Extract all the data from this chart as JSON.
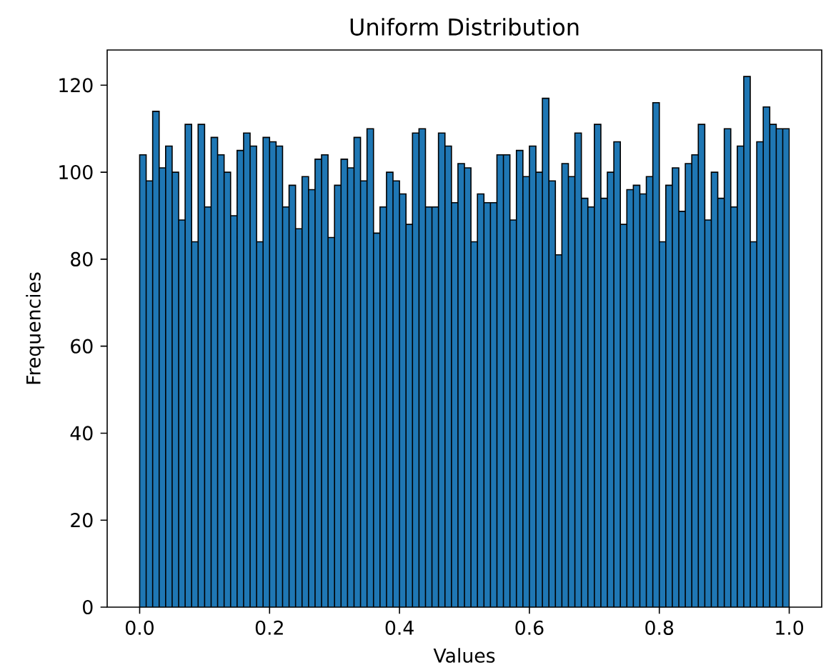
{
  "chart_data": {
    "type": "histogram",
    "title": "Uniform Distribution",
    "xlabel": "Values",
    "ylabel": "Frequencies",
    "bins": [
      0,
      0.01,
      0.02,
      0.03,
      0.04,
      0.05,
      0.06,
      0.07,
      0.08,
      0.09,
      0.1,
      0.11,
      0.12,
      0.13,
      0.14,
      0.15,
      0.16,
      0.17,
      0.18,
      0.19,
      0.2,
      0.21,
      0.22,
      0.23,
      0.24,
      0.25,
      0.26,
      0.27,
      0.28,
      0.29,
      0.3,
      0.31,
      0.32,
      0.33,
      0.34,
      0.35,
      0.36,
      0.37,
      0.38,
      0.39,
      0.4,
      0.41,
      0.42,
      0.43,
      0.44,
      0.45,
      0.46,
      0.47,
      0.48,
      0.49,
      0.5,
      0.51,
      0.52,
      0.53,
      0.54,
      0.55,
      0.56,
      0.57,
      0.58,
      0.59,
      0.6,
      0.61,
      0.62,
      0.63,
      0.64,
      0.65,
      0.66,
      0.67,
      0.68,
      0.69,
      0.7,
      0.71,
      0.72,
      0.73,
      0.74,
      0.75,
      0.76,
      0.77,
      0.78,
      0.79,
      0.8,
      0.81,
      0.82,
      0.83,
      0.84,
      0.85,
      0.86,
      0.87,
      0.88,
      0.89,
      0.9,
      0.91,
      0.92,
      0.93,
      0.94,
      0.95,
      0.96,
      0.97,
      0.98,
      0.99,
      1
    ],
    "values": [
      104,
      98,
      114,
      101,
      106,
      100,
      89,
      111,
      84,
      111,
      92,
      108,
      104,
      100,
      90,
      105,
      109,
      106,
      84,
      108,
      107,
      106,
      92,
      97,
      87,
      99,
      96,
      103,
      104,
      85,
      97,
      103,
      101,
      108,
      98,
      110,
      86,
      92,
      100,
      98,
      95,
      88,
      109,
      110,
      92,
      92,
      109,
      106,
      93,
      102,
      101,
      84,
      95,
      93,
      93,
      104,
      104,
      89,
      105,
      99,
      106,
      100,
      117,
      98,
      81,
      102,
      99,
      109,
      94,
      92,
      111,
      94,
      100,
      107,
      88,
      96,
      97,
      95,
      99,
      116,
      84,
      97,
      101,
      91,
      102,
      104,
      111,
      89,
      100,
      94,
      110,
      92,
      106,
      122,
      84,
      107,
      115,
      111,
      110,
      110
    ],
    "color": "#1f77b4",
    "xlim": [
      -0.05,
      1.05
    ],
    "ylim": [
      0,
      128.1
    ],
    "xticks": [
      {
        "value": 0,
        "label": "0.0"
      },
      {
        "value": 0.2,
        "label": "0.2"
      },
      {
        "value": 0.4,
        "label": "0.4"
      },
      {
        "value": 0.6,
        "label": "0.6"
      },
      {
        "value": 0.8,
        "label": "0.8"
      },
      {
        "value": 1,
        "label": "1.0"
      }
    ],
    "yticks": [
      0,
      20,
      40,
      60,
      80,
      100,
      120
    ]
  }
}
